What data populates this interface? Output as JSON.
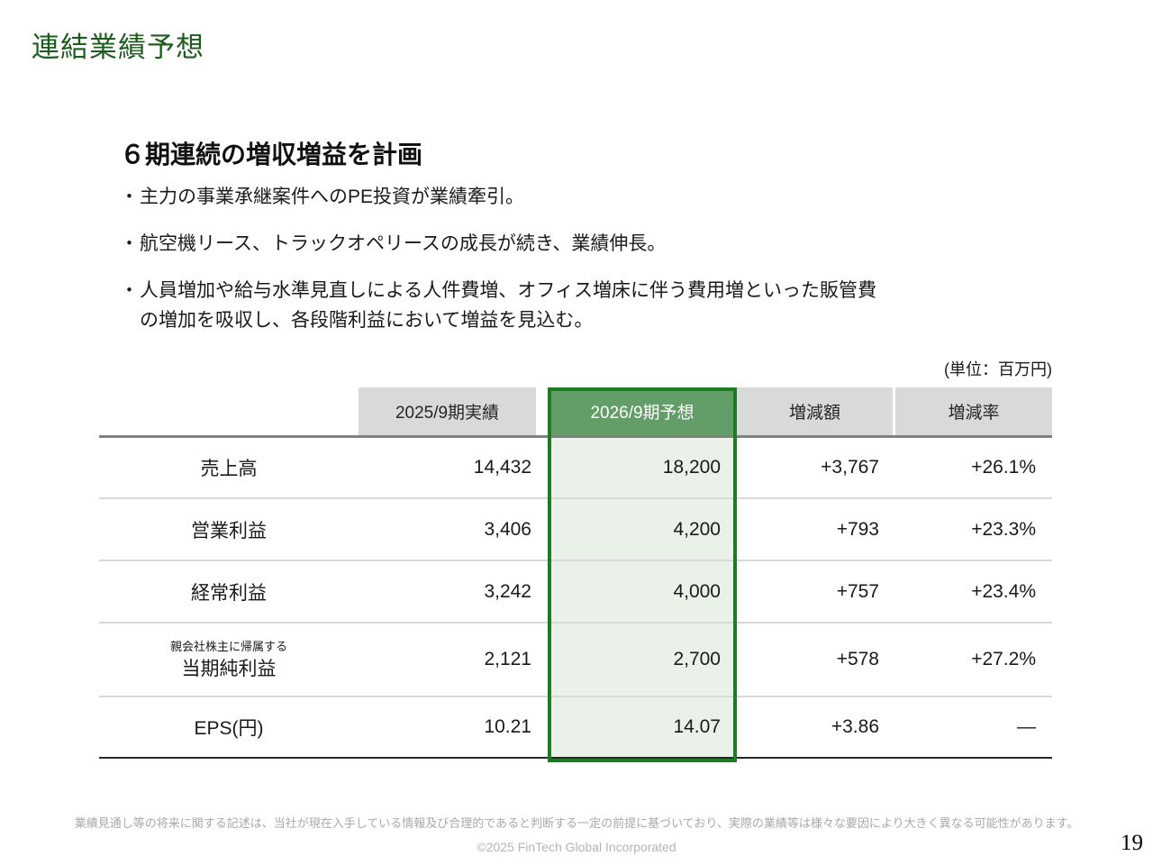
{
  "slide": {
    "title": "連結業績予想",
    "page_number": "19"
  },
  "content": {
    "heading": "６期連続の増収増益を計画",
    "bullet_marker": "・",
    "bullets": [
      "主力の事業承継案件へのPE投資が業績牽引。",
      "航空機リース、トラックオペリースの成長が続き、業績伸長。",
      "人員増加や給与水準見直しによる人件費増、オフィス増床に伴う費用増といった販管費\nの増加を吸収し、各段階利益において増益を見込む。"
    ]
  },
  "table": {
    "unit_label": "(単位：百万円)",
    "headers": [
      "",
      "2025/9期実績",
      "2026/9期予想",
      "増減額",
      "増減率"
    ],
    "rows": [
      {
        "label": "売上高",
        "label_note": "",
        "actual": "14,432",
        "forecast": "18,200",
        "change": "+3,767",
        "change_rate": "+26.1%"
      },
      {
        "label": "営業利益",
        "label_note": "",
        "actual": "3,406",
        "forecast": "4,200",
        "change": "+793",
        "change_rate": "+23.3%"
      },
      {
        "label": "経常利益",
        "label_note": "",
        "actual": "3,242",
        "forecast": "4,000",
        "change": "+757",
        "change_rate": "+23.4%"
      },
      {
        "label": "当期純利益",
        "label_note": "親会社株主に帰属する",
        "actual": "2,121",
        "forecast": "2,700",
        "change": "+578",
        "change_rate": "+27.2%"
      },
      {
        "label": "EPS(円)",
        "label_note": "",
        "actual": "10.21",
        "forecast": "14.07",
        "change": "+3.86",
        "change_rate": "—"
      }
    ]
  },
  "footer": {
    "disclaimer": "業績見通し等の将来に関する記述は、当社が現在入手している情報及び合理的であると判断する一定の前提に基づいており、実際の業績等は様々な要因により大きく異なる可能性があります。",
    "copyright": "©2025 FinTech Global Incorporated"
  },
  "colors": {
    "title_green": "#1d5c1d",
    "header_green": "#639e68",
    "highlight_border_green": "#1e7c20",
    "highlight_fill_green": "#e9f1e9",
    "header_gray": "#d9d9d9"
  }
}
